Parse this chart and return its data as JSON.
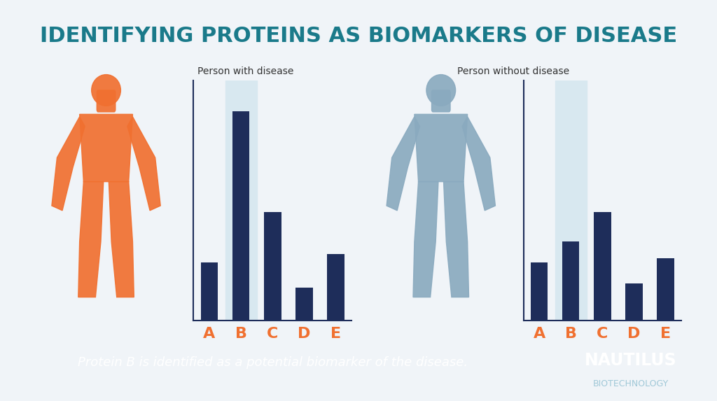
{
  "title": "IDENTIFYING PROTEINS AS BIOMARKERS OF DISEASE",
  "title_color": "#1a7a8a",
  "bg_color": "#f0f4f8",
  "bar_color": "#1e2d5a",
  "highlight_color": "#d8e8f0",
  "label_color_orange": "#f07030",
  "label_color_blue": "#8aaabf",
  "bottom_bg": "#1a6078",
  "bottom_text_color": "white",
  "subtitle_disease": "Person with disease",
  "subtitle_no_disease": "Person without disease",
  "bottom_caption": "Protein B is identified as a potential biomarker of the disease.",
  "nautilus_text": "NAUTILUS",
  "biotech_text": "BIOTECHNOLOGY",
  "categories": [
    "A",
    "B",
    "C",
    "D",
    "E"
  ],
  "disease_values": [
    0.28,
    1.0,
    0.52,
    0.16,
    0.32
  ],
  "no_disease_values": [
    0.28,
    0.38,
    0.52,
    0.18,
    0.3
  ],
  "highlight_bar_index": 1,
  "person_disease_color": "#f07030",
  "person_no_disease_color": "#8aaabf"
}
